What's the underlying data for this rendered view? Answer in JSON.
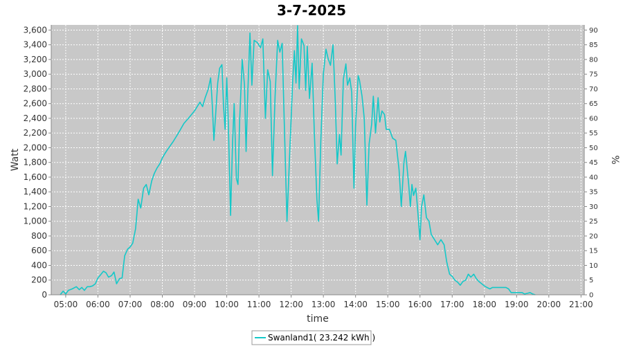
{
  "chart_data": {
    "type": "line",
    "title": "3-7-2025",
    "xlabel": "time",
    "ylabel": "Watt",
    "y2label": "%",
    "xlim": [
      4.55,
      21.1
    ],
    "ylim": [
      0,
      3670
    ],
    "y2lim": [
      0,
      91.75
    ],
    "x_ticks": [
      "05:00",
      "06:00",
      "07:00",
      "08:00",
      "09:00",
      "10:00",
      "11:00",
      "12:00",
      "13:00",
      "14:00",
      "15:00",
      "16:00",
      "17:00",
      "18:00",
      "19:00",
      "20:00",
      "21:00"
    ],
    "y_ticks": [
      "0",
      "200",
      "400",
      "600",
      "800",
      "1,000",
      "1,200",
      "1,400",
      "1,600",
      "1,800",
      "2,000",
      "2,200",
      "2,400",
      "2,600",
      "2,800",
      "3,000",
      "3,200",
      "3,400",
      "3,600"
    ],
    "y2_ticks": [
      "0",
      "5",
      "10",
      "15",
      "20",
      "25",
      "30",
      "35",
      "40",
      "45",
      "50",
      "55",
      "60",
      "65",
      "70",
      "75",
      "80",
      "85",
      "90"
    ],
    "grid": true,
    "legend_position": "bottom",
    "colors": {
      "series": "#14c8c8",
      "plot_bg": "#c8c8c8",
      "grid": "#ffffff"
    },
    "series": [
      {
        "name": "Swanland1( 23.242 kWh  )",
        "total_label": "23.242 kWh",
        "points": [
          [
            4.83,
            0
          ],
          [
            4.92,
            50
          ],
          [
            5.0,
            10
          ],
          [
            5.08,
            60
          ],
          [
            5.2,
            80
          ],
          [
            5.33,
            110
          ],
          [
            5.42,
            70
          ],
          [
            5.5,
            100
          ],
          [
            5.58,
            60
          ],
          [
            5.67,
            110
          ],
          [
            5.75,
            110
          ],
          [
            5.83,
            120
          ],
          [
            5.92,
            150
          ],
          [
            6.0,
            230
          ],
          [
            6.08,
            270
          ],
          [
            6.17,
            320
          ],
          [
            6.25,
            300
          ],
          [
            6.33,
            240
          ],
          [
            6.42,
            260
          ],
          [
            6.5,
            310
          ],
          [
            6.58,
            150
          ],
          [
            6.67,
            220
          ],
          [
            6.75,
            230
          ],
          [
            6.83,
            530
          ],
          [
            6.92,
            620
          ],
          [
            7.0,
            650
          ],
          [
            7.08,
            700
          ],
          [
            7.17,
            900
          ],
          [
            7.25,
            1300
          ],
          [
            7.33,
            1180
          ],
          [
            7.42,
            1450
          ],
          [
            7.5,
            1500
          ],
          [
            7.58,
            1360
          ],
          [
            7.67,
            1550
          ],
          [
            7.75,
            1650
          ],
          [
            7.83,
            1720
          ],
          [
            7.92,
            1780
          ],
          [
            8.0,
            1860
          ],
          [
            8.08,
            1920
          ],
          [
            8.17,
            1980
          ],
          [
            8.33,
            2080
          ],
          [
            8.5,
            2200
          ],
          [
            8.67,
            2330
          ],
          [
            8.83,
            2410
          ],
          [
            9.0,
            2500
          ],
          [
            9.17,
            2620
          ],
          [
            9.25,
            2560
          ],
          [
            9.33,
            2680
          ],
          [
            9.42,
            2790
          ],
          [
            9.5,
            2950
          ],
          [
            9.55,
            2600
          ],
          [
            9.6,
            2100
          ],
          [
            9.65,
            2420
          ],
          [
            9.72,
            2880
          ],
          [
            9.78,
            3080
          ],
          [
            9.85,
            3130
          ],
          [
            9.9,
            2570
          ],
          [
            9.95,
            2250
          ],
          [
            10.0,
            2950
          ],
          [
            10.05,
            2320
          ],
          [
            10.12,
            1080
          ],
          [
            10.18,
            2050
          ],
          [
            10.23,
            2600
          ],
          [
            10.3,
            1580
          ],
          [
            10.35,
            1500
          ],
          [
            10.4,
            2370
          ],
          [
            10.48,
            3200
          ],
          [
            10.55,
            2850
          ],
          [
            10.6,
            1950
          ],
          [
            10.65,
            2700
          ],
          [
            10.72,
            3560
          ],
          [
            10.78,
            2850
          ],
          [
            10.85,
            3460
          ],
          [
            10.95,
            3430
          ],
          [
            11.05,
            3360
          ],
          [
            11.12,
            3480
          ],
          [
            11.2,
            2400
          ],
          [
            11.27,
            3060
          ],
          [
            11.35,
            2900
          ],
          [
            11.42,
            1620
          ],
          [
            11.5,
            2700
          ],
          [
            11.58,
            3460
          ],
          [
            11.65,
            3300
          ],
          [
            11.72,
            3420
          ],
          [
            11.8,
            2120
          ],
          [
            11.87,
            1000
          ],
          [
            11.95,
            1880
          ],
          [
            12.05,
            2920
          ],
          [
            12.1,
            3320
          ],
          [
            12.15,
            2880
          ],
          [
            12.2,
            3660
          ],
          [
            12.25,
            2800
          ],
          [
            12.32,
            3480
          ],
          [
            12.4,
            3390
          ],
          [
            12.45,
            2780
          ],
          [
            12.5,
            3380
          ],
          [
            12.57,
            2670
          ],
          [
            12.65,
            3150
          ],
          [
            12.72,
            2200
          ],
          [
            12.8,
            1300
          ],
          [
            12.85,
            1000
          ],
          [
            12.92,
            2080
          ],
          [
            13.0,
            3000
          ],
          [
            13.08,
            3340
          ],
          [
            13.15,
            3210
          ],
          [
            13.22,
            3120
          ],
          [
            13.3,
            3400
          ],
          [
            13.37,
            2620
          ],
          [
            13.43,
            1780
          ],
          [
            13.5,
            2180
          ],
          [
            13.55,
            1900
          ],
          [
            13.62,
            2930
          ],
          [
            13.7,
            3140
          ],
          [
            13.75,
            2850
          ],
          [
            13.82,
            2950
          ],
          [
            13.88,
            2750
          ],
          [
            13.95,
            1450
          ],
          [
            14.0,
            2300
          ],
          [
            14.08,
            2980
          ],
          [
            14.12,
            2920
          ],
          [
            14.2,
            2700
          ],
          [
            14.27,
            2400
          ],
          [
            14.35,
            1220
          ],
          [
            14.42,
            2050
          ],
          [
            14.5,
            2320
          ],
          [
            14.55,
            2700
          ],
          [
            14.62,
            2200
          ],
          [
            14.7,
            2680
          ],
          [
            14.75,
            2350
          ],
          [
            14.82,
            2500
          ],
          [
            14.9,
            2450
          ],
          [
            14.95,
            2250
          ],
          [
            15.05,
            2250
          ],
          [
            15.15,
            2130
          ],
          [
            15.25,
            2100
          ],
          [
            15.35,
            1700
          ],
          [
            15.42,
            1200
          ],
          [
            15.5,
            1800
          ],
          [
            15.55,
            1950
          ],
          [
            15.65,
            1500
          ],
          [
            15.7,
            1200
          ],
          [
            15.75,
            1500
          ],
          [
            15.8,
            1350
          ],
          [
            15.87,
            1450
          ],
          [
            15.92,
            1200
          ],
          [
            16.0,
            750
          ],
          [
            16.05,
            1200
          ],
          [
            16.12,
            1360
          ],
          [
            16.2,
            1050
          ],
          [
            16.28,
            1000
          ],
          [
            16.35,
            820
          ],
          [
            16.45,
            750
          ],
          [
            16.55,
            680
          ],
          [
            16.65,
            750
          ],
          [
            16.75,
            680
          ],
          [
            16.83,
            450
          ],
          [
            16.92,
            280
          ],
          [
            17.0,
            250
          ],
          [
            17.08,
            200
          ],
          [
            17.17,
            170
          ],
          [
            17.25,
            130
          ],
          [
            17.33,
            180
          ],
          [
            17.42,
            200
          ],
          [
            17.5,
            280
          ],
          [
            17.58,
            240
          ],
          [
            17.67,
            280
          ],
          [
            17.75,
            220
          ],
          [
            17.83,
            180
          ],
          [
            17.92,
            150
          ],
          [
            18.0,
            120
          ],
          [
            18.08,
            100
          ],
          [
            18.17,
            80
          ],
          [
            18.25,
            100
          ],
          [
            18.33,
            100
          ],
          [
            18.5,
            100
          ],
          [
            18.67,
            100
          ],
          [
            18.75,
            80
          ],
          [
            18.83,
            30
          ],
          [
            19.0,
            30
          ],
          [
            19.17,
            30
          ],
          [
            19.25,
            10
          ],
          [
            19.42,
            30
          ],
          [
            19.5,
            10
          ],
          [
            19.58,
            0
          ]
        ]
      }
    ]
  }
}
